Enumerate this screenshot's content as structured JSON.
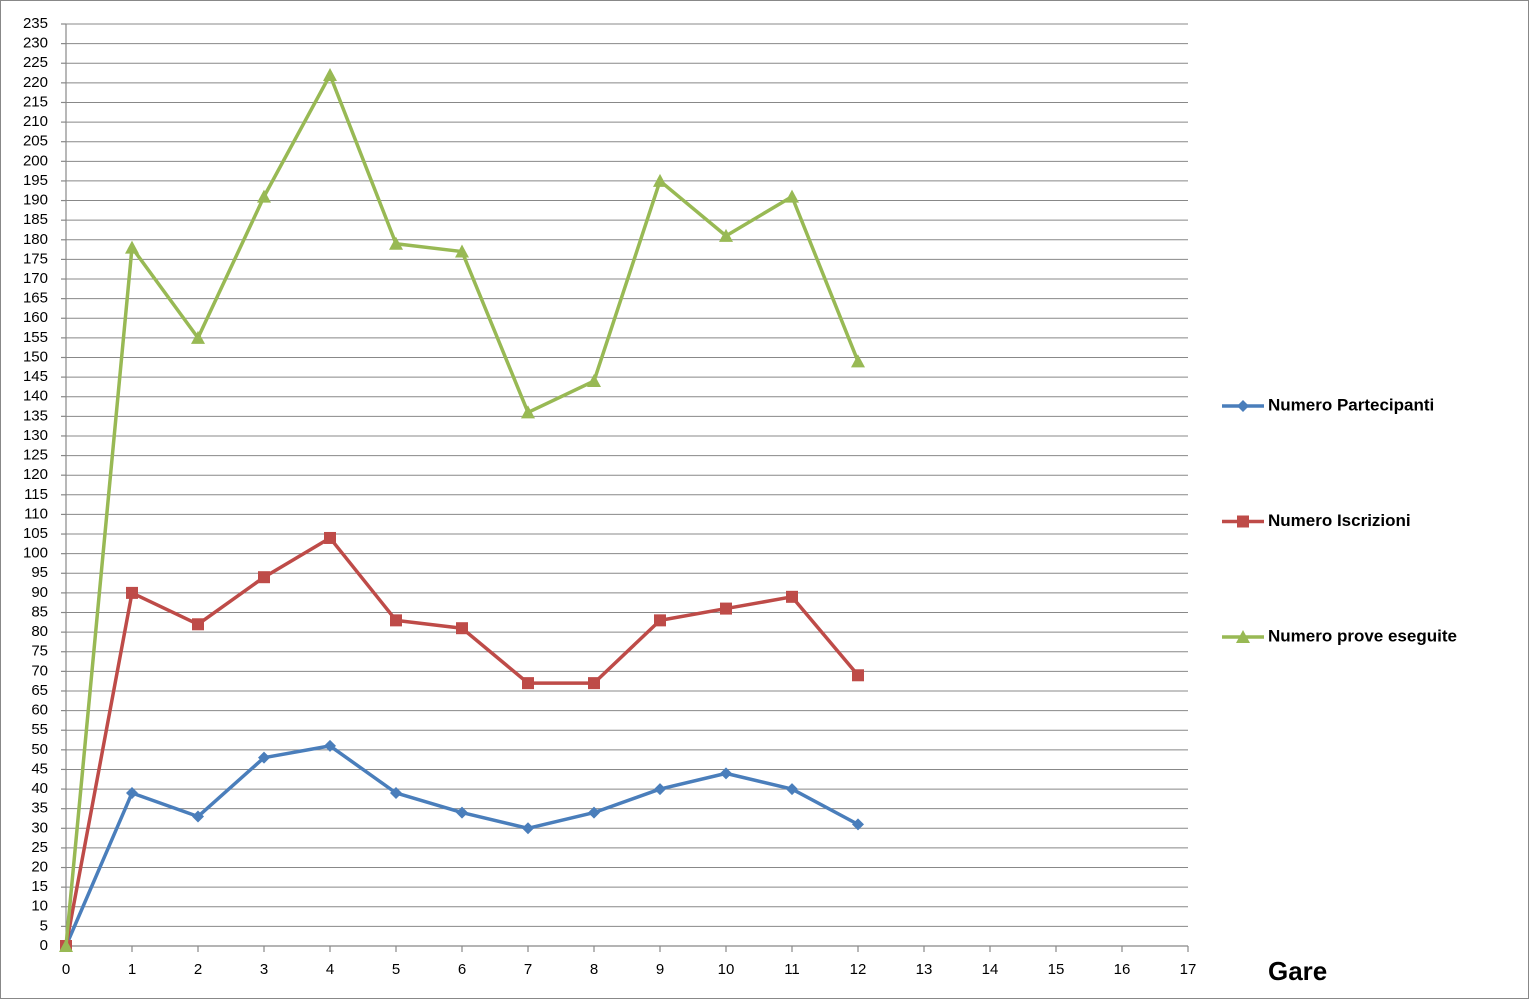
{
  "chart_data": {
    "type": "line",
    "x_label": "Gare",
    "x": [
      0,
      1,
      2,
      3,
      4,
      5,
      6,
      7,
      8,
      9,
      10,
      11,
      12
    ],
    "series": [
      {
        "name": "Numero Partecipanti",
        "color": "#4a7ebb",
        "marker": "diamond",
        "values": [
          0,
          39,
          33,
          48,
          51,
          39,
          34,
          30,
          34,
          40,
          44,
          40,
          31
        ]
      },
      {
        "name": "Numero Iscrizioni",
        "color": "#be4b48",
        "marker": "square",
        "values": [
          0,
          90,
          82,
          94,
          104,
          83,
          81,
          67,
          67,
          83,
          86,
          89,
          69
        ]
      },
      {
        "name": "Numero prove eseguite",
        "color": "#98b954",
        "marker": "triangle",
        "values": [
          0,
          178,
          155,
          191,
          222,
          179,
          177,
          136,
          144,
          195,
          181,
          191,
          149
        ]
      }
    ],
    "xlim": [
      0,
      17
    ],
    "xticks": [
      0,
      1,
      2,
      3,
      4,
      5,
      6,
      7,
      8,
      9,
      10,
      11,
      12,
      13,
      14,
      15,
      16,
      17
    ],
    "ylim": [
      0,
      235
    ],
    "yticks": [
      0,
      5,
      10,
      15,
      20,
      25,
      30,
      35,
      40,
      45,
      50,
      55,
      60,
      65,
      70,
      75,
      80,
      85,
      90,
      95,
      100,
      105,
      110,
      115,
      120,
      125,
      130,
      135,
      140,
      145,
      150,
      155,
      160,
      165,
      170,
      175,
      180,
      185,
      190,
      195,
      200,
      205,
      210,
      215,
      220,
      225,
      230,
      235
    ],
    "grid": true,
    "legend": "right"
  }
}
